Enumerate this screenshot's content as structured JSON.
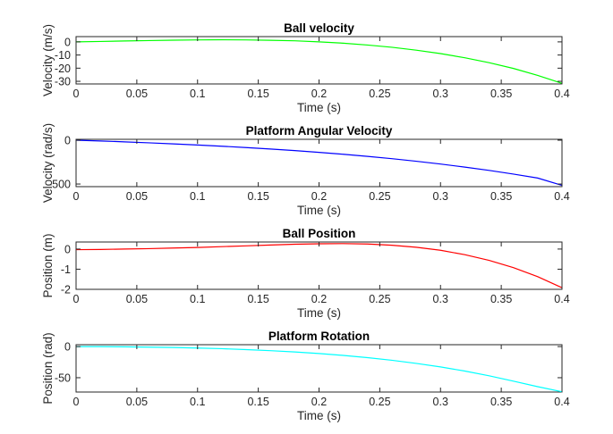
{
  "figure": {
    "background": "#ffffff"
  },
  "chart_data": [
    {
      "type": "line",
      "title": "Ball velocity",
      "xlabel": "Time (s)",
      "ylabel": "Velocity (m/s)",
      "xlim": [
        0,
        0.4
      ],
      "ylim": [
        -32,
        4
      ],
      "xticks": [
        0,
        0.05,
        0.1,
        0.15,
        0.2,
        0.25,
        0.3,
        0.35,
        0.4
      ],
      "xtick_labels": [
        "0",
        "0.05",
        "0.1",
        "0.15",
        "0.2",
        "0.25",
        "0.3",
        "0.35",
        "0.4"
      ],
      "yticks": [
        0,
        -10,
        -20,
        -30
      ],
      "ytick_labels": [
        "0",
        "-10",
        "-20",
        "-30"
      ],
      "grid": false,
      "series": [
        {
          "color": "#00ff00",
          "x": [
            0,
            0.02,
            0.04,
            0.06,
            0.08,
            0.1,
            0.12,
            0.14,
            0.16,
            0.18,
            0.2,
            0.22,
            0.24,
            0.26,
            0.28,
            0.3,
            0.32,
            0.34,
            0.36,
            0.38,
            0.4
          ],
          "y": [
            0,
            0.3,
            0.7,
            1.0,
            1.3,
            1.5,
            1.6,
            1.5,
            1.2,
            0.8,
            0.0,
            -1.0,
            -2.4,
            -4.1,
            -6.3,
            -8.9,
            -12.1,
            -15.8,
            -20.2,
            -25.5,
            -31.5
          ]
        }
      ]
    },
    {
      "type": "line",
      "title": "Platform Angular Velocity",
      "xlabel": "Time (s)",
      "ylabel": "Velocity (rad/s)",
      "xlim": [
        0,
        0.4
      ],
      "ylim": [
        -530,
        10
      ],
      "xticks": [
        0,
        0.05,
        0.1,
        0.15,
        0.2,
        0.25,
        0.3,
        0.35,
        0.4
      ],
      "xtick_labels": [
        "0",
        "0.05",
        "0.1",
        "0.15",
        "0.2",
        "0.25",
        "0.3",
        "0.35",
        "0.4"
      ],
      "yticks": [
        0,
        -500
      ],
      "ytick_labels": [
        "0",
        "-500"
      ],
      "grid": false,
      "series": [
        {
          "color": "#0000ff",
          "x": [
            0,
            0.02,
            0.04,
            0.06,
            0.08,
            0.1,
            0.12,
            0.14,
            0.16,
            0.18,
            0.2,
            0.22,
            0.24,
            0.26,
            0.28,
            0.3,
            0.32,
            0.34,
            0.36,
            0.38,
            0.4
          ],
          "y": [
            0,
            -9,
            -19,
            -30,
            -42,
            -55,
            -69,
            -84,
            -101,
            -119,
            -139,
            -161,
            -185,
            -211,
            -240,
            -272,
            -307,
            -345,
            -387,
            -432,
            -515
          ]
        }
      ]
    },
    {
      "type": "line",
      "title": "Ball Position",
      "xlabel": "Time (s)",
      "ylabel": "Position (m)",
      "xlim": [
        0,
        0.4
      ],
      "ylim": [
        -2,
        0.35
      ],
      "xticks": [
        0,
        0.05,
        0.1,
        0.15,
        0.2,
        0.25,
        0.3,
        0.35,
        0.4
      ],
      "xtick_labels": [
        "0",
        "0.05",
        "0.1",
        "0.15",
        "0.2",
        "0.25",
        "0.3",
        "0.35",
        "0.4"
      ],
      "yticks": [
        0,
        -1,
        -2
      ],
      "ytick_labels": [
        "0",
        "-1",
        "-2"
      ],
      "grid": false,
      "series": [
        {
          "color": "#ff0000",
          "x": [
            0,
            0.02,
            0.04,
            0.06,
            0.08,
            0.1,
            0.12,
            0.14,
            0.16,
            0.18,
            0.2,
            0.22,
            0.24,
            0.26,
            0.28,
            0.3,
            0.32,
            0.34,
            0.36,
            0.38,
            0.4
          ],
          "y": [
            -0.03,
            -0.02,
            0.0,
            0.02,
            0.05,
            0.08,
            0.12,
            0.16,
            0.2,
            0.24,
            0.26,
            0.27,
            0.25,
            0.19,
            0.09,
            -0.06,
            -0.28,
            -0.56,
            -0.92,
            -1.37,
            -1.92
          ]
        }
      ]
    },
    {
      "type": "line",
      "title": "Platform Rotation",
      "xlabel": "Time (s)",
      "ylabel": "Position (rad)",
      "xlim": [
        0,
        0.4
      ],
      "ylim": [
        -73,
        3
      ],
      "xticks": [
        0,
        0.05,
        0.1,
        0.15,
        0.2,
        0.25,
        0.3,
        0.35,
        0.4
      ],
      "xtick_labels": [
        "0",
        "0.05",
        "0.1",
        "0.15",
        "0.2",
        "0.25",
        "0.3",
        "0.35",
        "0.4"
      ],
      "yticks": [
        0,
        -50
      ],
      "ytick_labels": [
        "0",
        "-50"
      ],
      "grid": false,
      "series": [
        {
          "color": "#00ffff",
          "x": [
            0,
            0.02,
            0.04,
            0.06,
            0.08,
            0.1,
            0.12,
            0.14,
            0.16,
            0.18,
            0.2,
            0.22,
            0.24,
            0.26,
            0.28,
            0.3,
            0.32,
            0.34,
            0.36,
            0.38,
            0.4
          ],
          "y": [
            0,
            -0.1,
            -0.4,
            -0.9,
            -1.5,
            -2.4,
            -3.4,
            -4.9,
            -6.6,
            -8.7,
            -11.2,
            -14.2,
            -17.8,
            -22.0,
            -27.0,
            -32.7,
            -39.3,
            -46.9,
            -55.5,
            -64.4,
            -72.5
          ]
        }
      ]
    }
  ]
}
